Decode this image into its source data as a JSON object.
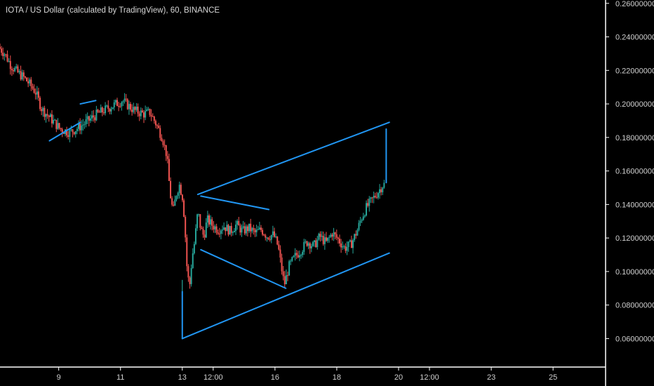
{
  "header": {
    "title": "IOTA / US Dollar (calculated by TradingView), 60, BINANCE"
  },
  "colors": {
    "background": "#000000",
    "up_candle": "#26a69a",
    "down_candle": "#ef5350",
    "drawing": "#2196f3",
    "axis_line": "#ffffff",
    "axis_text": "#d0d0d0"
  },
  "chart_data": {
    "type": "candlestick",
    "title": "IOTA / US Dollar (calculated by TradingView), 60, BINANCE",
    "y_ticks": [
      "0.26000000",
      "0.24000000",
      "0.22000000",
      "0.20000000",
      "0.18000000",
      "0.16000000",
      "0.14000000",
      "0.12000000",
      "0.10000000",
      "0.08000000",
      "0.06000000"
    ],
    "y_tick_values": [
      0.26,
      0.24,
      0.22,
      0.2,
      0.18,
      0.16,
      0.14,
      0.12,
      0.1,
      0.08,
      0.06
    ],
    "ylim": [
      0.043,
      0.262
    ],
    "x_ticks": [
      "9",
      "11",
      "13",
      "12:00",
      "16",
      "18",
      "20",
      "12:00",
      "23",
      "25"
    ],
    "x_tick_values": [
      1,
      3,
      5,
      6,
      8,
      10,
      12,
      13,
      15,
      17
    ],
    "xlim": [
      -0.9,
      18.7
    ],
    "price_path": [
      [
        -0.9,
        0.234
      ],
      [
        -0.7,
        0.23
      ],
      [
        -0.5,
        0.223
      ],
      [
        -0.3,
        0.219
      ],
      [
        -0.1,
        0.216
      ],
      [
        0.1,
        0.212
      ],
      [
        0.3,
        0.207
      ],
      [
        0.5,
        0.197
      ],
      [
        0.7,
        0.193
      ],
      [
        0.9,
        0.189
      ],
      [
        1.1,
        0.185
      ],
      [
        1.4,
        0.183
      ],
      [
        1.7,
        0.186
      ],
      [
        2.0,
        0.19
      ],
      [
        2.3,
        0.194
      ],
      [
        2.6,
        0.197
      ],
      [
        2.9,
        0.2
      ],
      [
        3.1,
        0.202
      ],
      [
        3.3,
        0.199
      ],
      [
        3.5,
        0.196
      ],
      [
        3.8,
        0.194
      ],
      [
        4.0,
        0.195
      ],
      [
        4.2,
        0.188
      ],
      [
        4.4,
        0.18
      ],
      [
        4.55,
        0.169
      ],
      [
        4.65,
        0.147
      ],
      [
        4.75,
        0.135
      ],
      [
        4.85,
        0.146
      ],
      [
        4.95,
        0.152
      ],
      [
        5.05,
        0.145
      ],
      [
        5.12,
        0.131
      ],
      [
        5.2,
        0.102
      ],
      [
        5.28,
        0.09
      ],
      [
        5.36,
        0.108
      ],
      [
        5.45,
        0.118
      ],
      [
        5.55,
        0.136
      ],
      [
        5.65,
        0.125
      ],
      [
        5.75,
        0.121
      ],
      [
        5.85,
        0.131
      ],
      [
        6.0,
        0.128
      ],
      [
        6.2,
        0.125
      ],
      [
        6.4,
        0.127
      ],
      [
        6.6,
        0.124
      ],
      [
        6.8,
        0.128
      ],
      [
        7.0,
        0.124
      ],
      [
        7.2,
        0.126
      ],
      [
        7.4,
        0.123
      ],
      [
        7.6,
        0.125
      ],
      [
        7.8,
        0.121
      ],
      [
        8.0,
        0.122
      ],
      [
        8.15,
        0.115
      ],
      [
        8.25,
        0.103
      ],
      [
        8.35,
        0.092
      ],
      [
        8.5,
        0.103
      ],
      [
        8.7,
        0.109
      ],
      [
        8.9,
        0.113
      ],
      [
        9.1,
        0.118
      ],
      [
        9.3,
        0.115
      ],
      [
        9.5,
        0.121
      ],
      [
        9.7,
        0.117
      ],
      [
        9.9,
        0.123
      ],
      [
        10.1,
        0.119
      ],
      [
        10.3,
        0.114
      ],
      [
        10.5,
        0.116
      ],
      [
        10.7,
        0.124
      ],
      [
        10.85,
        0.132
      ],
      [
        11.0,
        0.138
      ],
      [
        11.2,
        0.143
      ],
      [
        11.4,
        0.148
      ],
      [
        11.55,
        0.152
      ]
    ],
    "trendlines": [
      {
        "x": [
          0.7,
          1.7
        ],
        "y": [
          0.178,
          0.189
        ]
      },
      {
        "x": [
          1.7,
          2.2
        ],
        "y": [
          0.2,
          0.202
        ]
      },
      {
        "x": [
          5.0,
          11.7
        ],
        "y": [
          0.06,
          0.111
        ]
      },
      {
        "x": [
          5.5,
          11.7
        ],
        "y": [
          0.146,
          0.189
        ]
      },
      {
        "x": [
          5.6,
          7.8
        ],
        "y": [
          0.145,
          0.137
        ]
      },
      {
        "x": [
          5.6,
          8.35
        ],
        "y": [
          0.113,
          0.09
        ]
      },
      {
        "x": [
          5.0,
          5.0
        ],
        "y": [
          0.06,
          0.088
        ]
      },
      {
        "x": [
          11.6,
          11.6
        ],
        "y": [
          0.153,
          0.185
        ]
      }
    ]
  }
}
